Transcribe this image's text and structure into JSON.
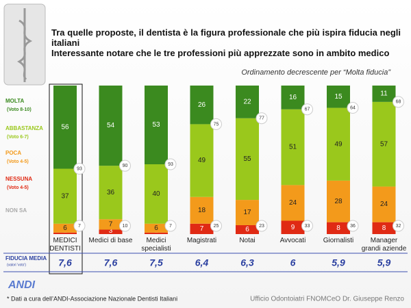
{
  "chart_data": {
    "type": "stacked_bar",
    "title": "Tra quelle proposte, il dentista è la figura professionale che più ispira fiducia negli italiani",
    "subtitle": "Interessante notare che le tre professioni più apprezzate sono in ambito medico",
    "note": "Ordinamento decrescente per “Molta fiducia”",
    "categories": [
      "MEDICI\nDENTISTI",
      "Medici di base",
      "Medici\nspecialisti",
      "Magistrati",
      "Notai",
      "Avvocati",
      "Giornalisti",
      "Manager\ngrandi aziende"
    ],
    "series": [
      {
        "name": "MOLTA",
        "sublabel": "(Voto 8-10)",
        "color": "#3b8a1f",
        "values": [
          56,
          54,
          53,
          26,
          22,
          16,
          15,
          11
        ]
      },
      {
        "name": "ABBASTANZA",
        "sublabel": "(Voto 6-7)",
        "color": "#9ac81c",
        "values": [
          37,
          36,
          40,
          49,
          55,
          51,
          49,
          57
        ]
      },
      {
        "name": "POCA",
        "sublabel": "(Voto 4-5)",
        "color": "#f39a1b",
        "values": [
          6,
          7,
          6,
          18,
          17,
          24,
          28,
          24
        ]
      },
      {
        "name": "NESSUNA",
        "sublabel": "(Voto 4-5)",
        "color": "#e02a14",
        "values": [
          1,
          3,
          1,
          7,
          6,
          9,
          8,
          8
        ]
      }
    ],
    "unanswered_label": "NON SA",
    "positive_totals": [
      93,
      90,
      93,
      75,
      77,
      67,
      64,
      68
    ],
    "negative_totals": [
      7,
      10,
      7,
      25,
      23,
      33,
      36,
      32
    ],
    "ylim": [
      0,
      100
    ],
    "average_title": "FIDUCIA MEDIA",
    "average_subtitle": "(valori 'voto')",
    "averages": [
      7.6,
      7.6,
      7.5,
      6.4,
      6.3,
      6,
      5.9,
      5.9
    ],
    "average_labels": [
      "7,6",
      "7,6",
      "7,5",
      "6,4",
      "6,3",
      "6",
      "5,9",
      "5,9"
    ],
    "logo": "ANDI",
    "footnote": "* Dati a cura dell’ANDI-Associazione Nazionale Dentisti Italiani",
    "credit": "Ufficio Odontoiatri FNOMCeO Dr. Giuseppe Renzo"
  }
}
